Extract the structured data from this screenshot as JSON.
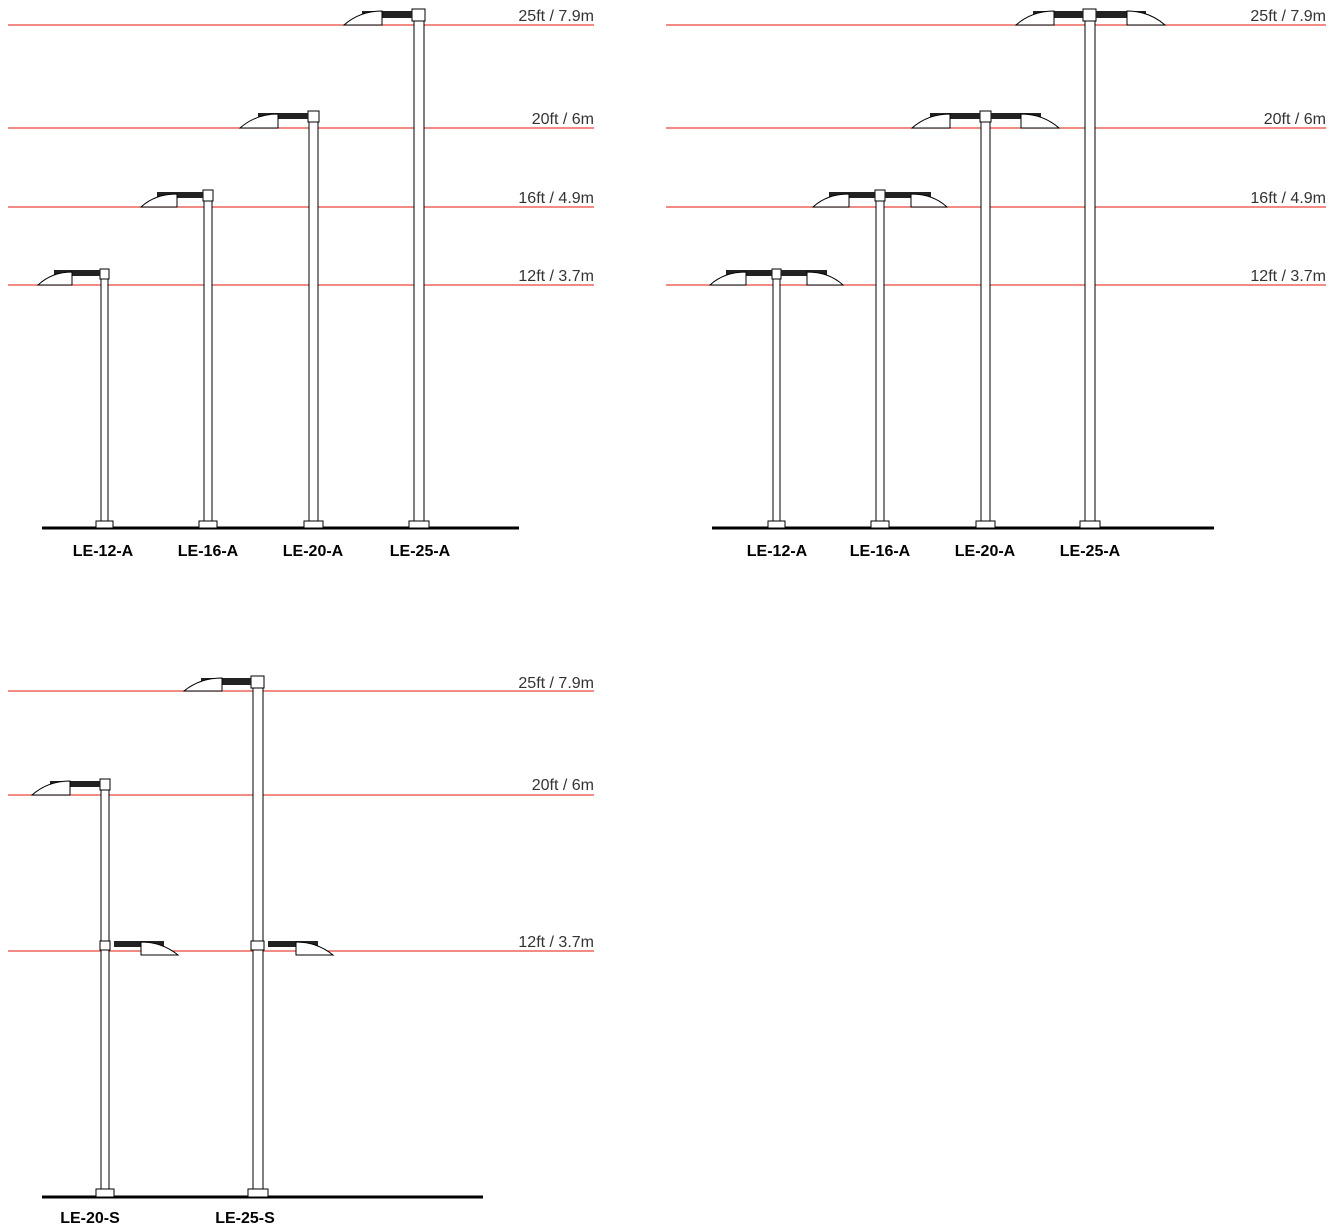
{
  "diagram_a": {
    "heights": [
      "25ft / 7.9m",
      "20ft / 6m",
      "16ft / 4.9m",
      "12ft / 3.7m"
    ],
    "models": [
      "LE-12-A",
      "LE-16-A",
      "LE-20-A",
      "LE-25-A"
    ]
  },
  "diagram_b": {
    "heights": [
      "25ft / 7.9m",
      "20ft / 6m",
      "16ft / 4.9m",
      "12ft / 3.7m"
    ],
    "models": [
      "LE-12-A",
      "LE-16-A",
      "LE-20-A",
      "LE-25-A"
    ]
  },
  "diagram_c": {
    "heights": [
      "25ft / 7.9m",
      "20ft / 6m",
      "12ft / 3.7m"
    ],
    "models": [
      "LE-20-S",
      "LE-25-S"
    ]
  },
  "colors": {
    "height_line": "#e8483a",
    "ink": "#000000",
    "label_text": "#333333"
  }
}
